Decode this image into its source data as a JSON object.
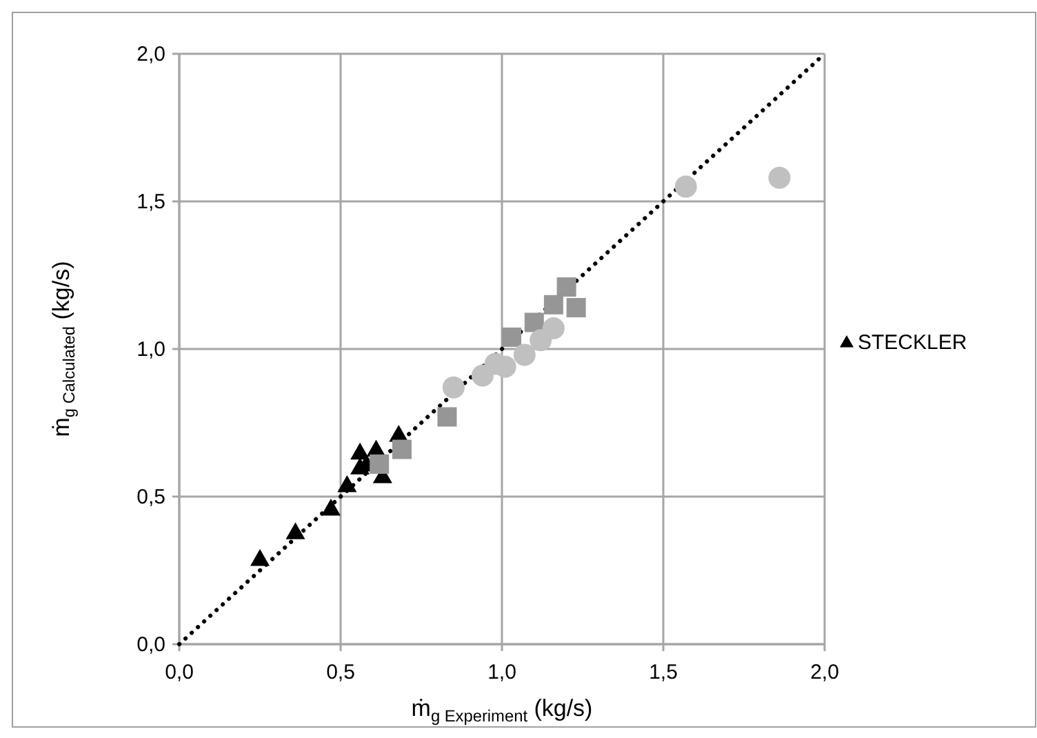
{
  "chart_data": {
    "type": "scatter",
    "xlabel": "ṁ$_{g Experiment}$ (kg/s)",
    "ylabel": "ṁ$_{g Calculated}$ (kg/s)",
    "xlim": [
      0,
      2
    ],
    "ylim": [
      0,
      2
    ],
    "xticks": [
      {
        "value": 0,
        "label": "0,0"
      },
      {
        "value": 0.5,
        "label": "0,5"
      },
      {
        "value": 1,
        "label": "1,0"
      },
      {
        "value": 1.5,
        "label": "1,5"
      },
      {
        "value": 2,
        "label": "2,0"
      }
    ],
    "yticks": [
      {
        "value": 0,
        "label": "0,0"
      },
      {
        "value": 0.5,
        "label": "0,5"
      },
      {
        "value": 1,
        "label": "1,0"
      },
      {
        "value": 1.5,
        "label": "1,5"
      },
      {
        "value": 2,
        "label": "2,0"
      }
    ],
    "grid": true,
    "legend": "right",
    "series": [
      {
        "type": "line",
        "color": "#000000",
        "line_style": "dotted",
        "marker": "none",
        "x": [
          0,
          2
        ],
        "values": [
          0,
          2
        ]
      },
      {
        "name": "STECKLER",
        "color": "#000000",
        "marker": "triangle",
        "x": [
          0.25,
          0.36,
          0.47,
          0.52,
          0.56,
          0.56,
          0.58,
          0.61,
          0.63,
          0.68
        ],
        "values": [
          0.29,
          0.38,
          0.46,
          0.54,
          0.65,
          0.6,
          0.61,
          0.66,
          0.57,
          0.71
        ]
      },
      {
        "color": "#969696",
        "marker": "square",
        "x": [
          0.62,
          0.69,
          0.83,
          1.03,
          1.1,
          1.16,
          1.2,
          1.23
        ],
        "values": [
          0.61,
          0.66,
          0.77,
          1.04,
          1.09,
          1.15,
          1.21,
          1.14
        ]
      },
      {
        "color": "#c0c0c0",
        "marker": "circle",
        "x": [
          0.85,
          0.94,
          0.98,
          1.01,
          1.07,
          1.12,
          1.16,
          1.57,
          1.86
        ],
        "values": [
          0.87,
          0.91,
          0.95,
          0.94,
          0.98,
          1.03,
          1.07,
          1.55,
          1.58
        ]
      }
    ]
  }
}
